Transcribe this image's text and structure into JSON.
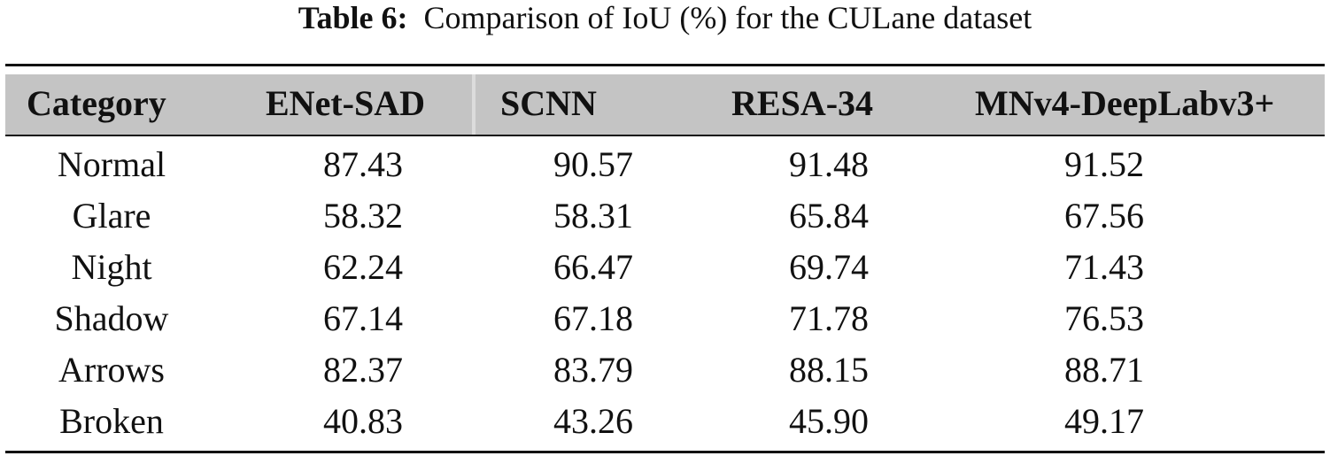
{
  "caption": {
    "label": "Table 6:",
    "text": "Comparison of IoU (%) for the CULane dataset"
  },
  "table": {
    "headers": [
      "Category",
      "ENet-SAD",
      "SCNN",
      "RESA-34",
      "MNv4-DeepLabv3+"
    ],
    "rows": [
      [
        "Normal",
        "87.43",
        "90.57",
        "91.48",
        "91.52"
      ],
      [
        "Glare",
        "58.32",
        "58.31",
        "65.84",
        "67.56"
      ],
      [
        "Night",
        "62.24",
        "66.47",
        "69.74",
        "71.43"
      ],
      [
        "Shadow",
        "67.14",
        "67.18",
        "71.78",
        "76.53"
      ],
      [
        "Arrows",
        "82.37",
        "83.79",
        "88.15",
        "88.71"
      ],
      [
        "Broken",
        "40.83",
        "43.26",
        "45.90",
        "49.17"
      ]
    ]
  }
}
